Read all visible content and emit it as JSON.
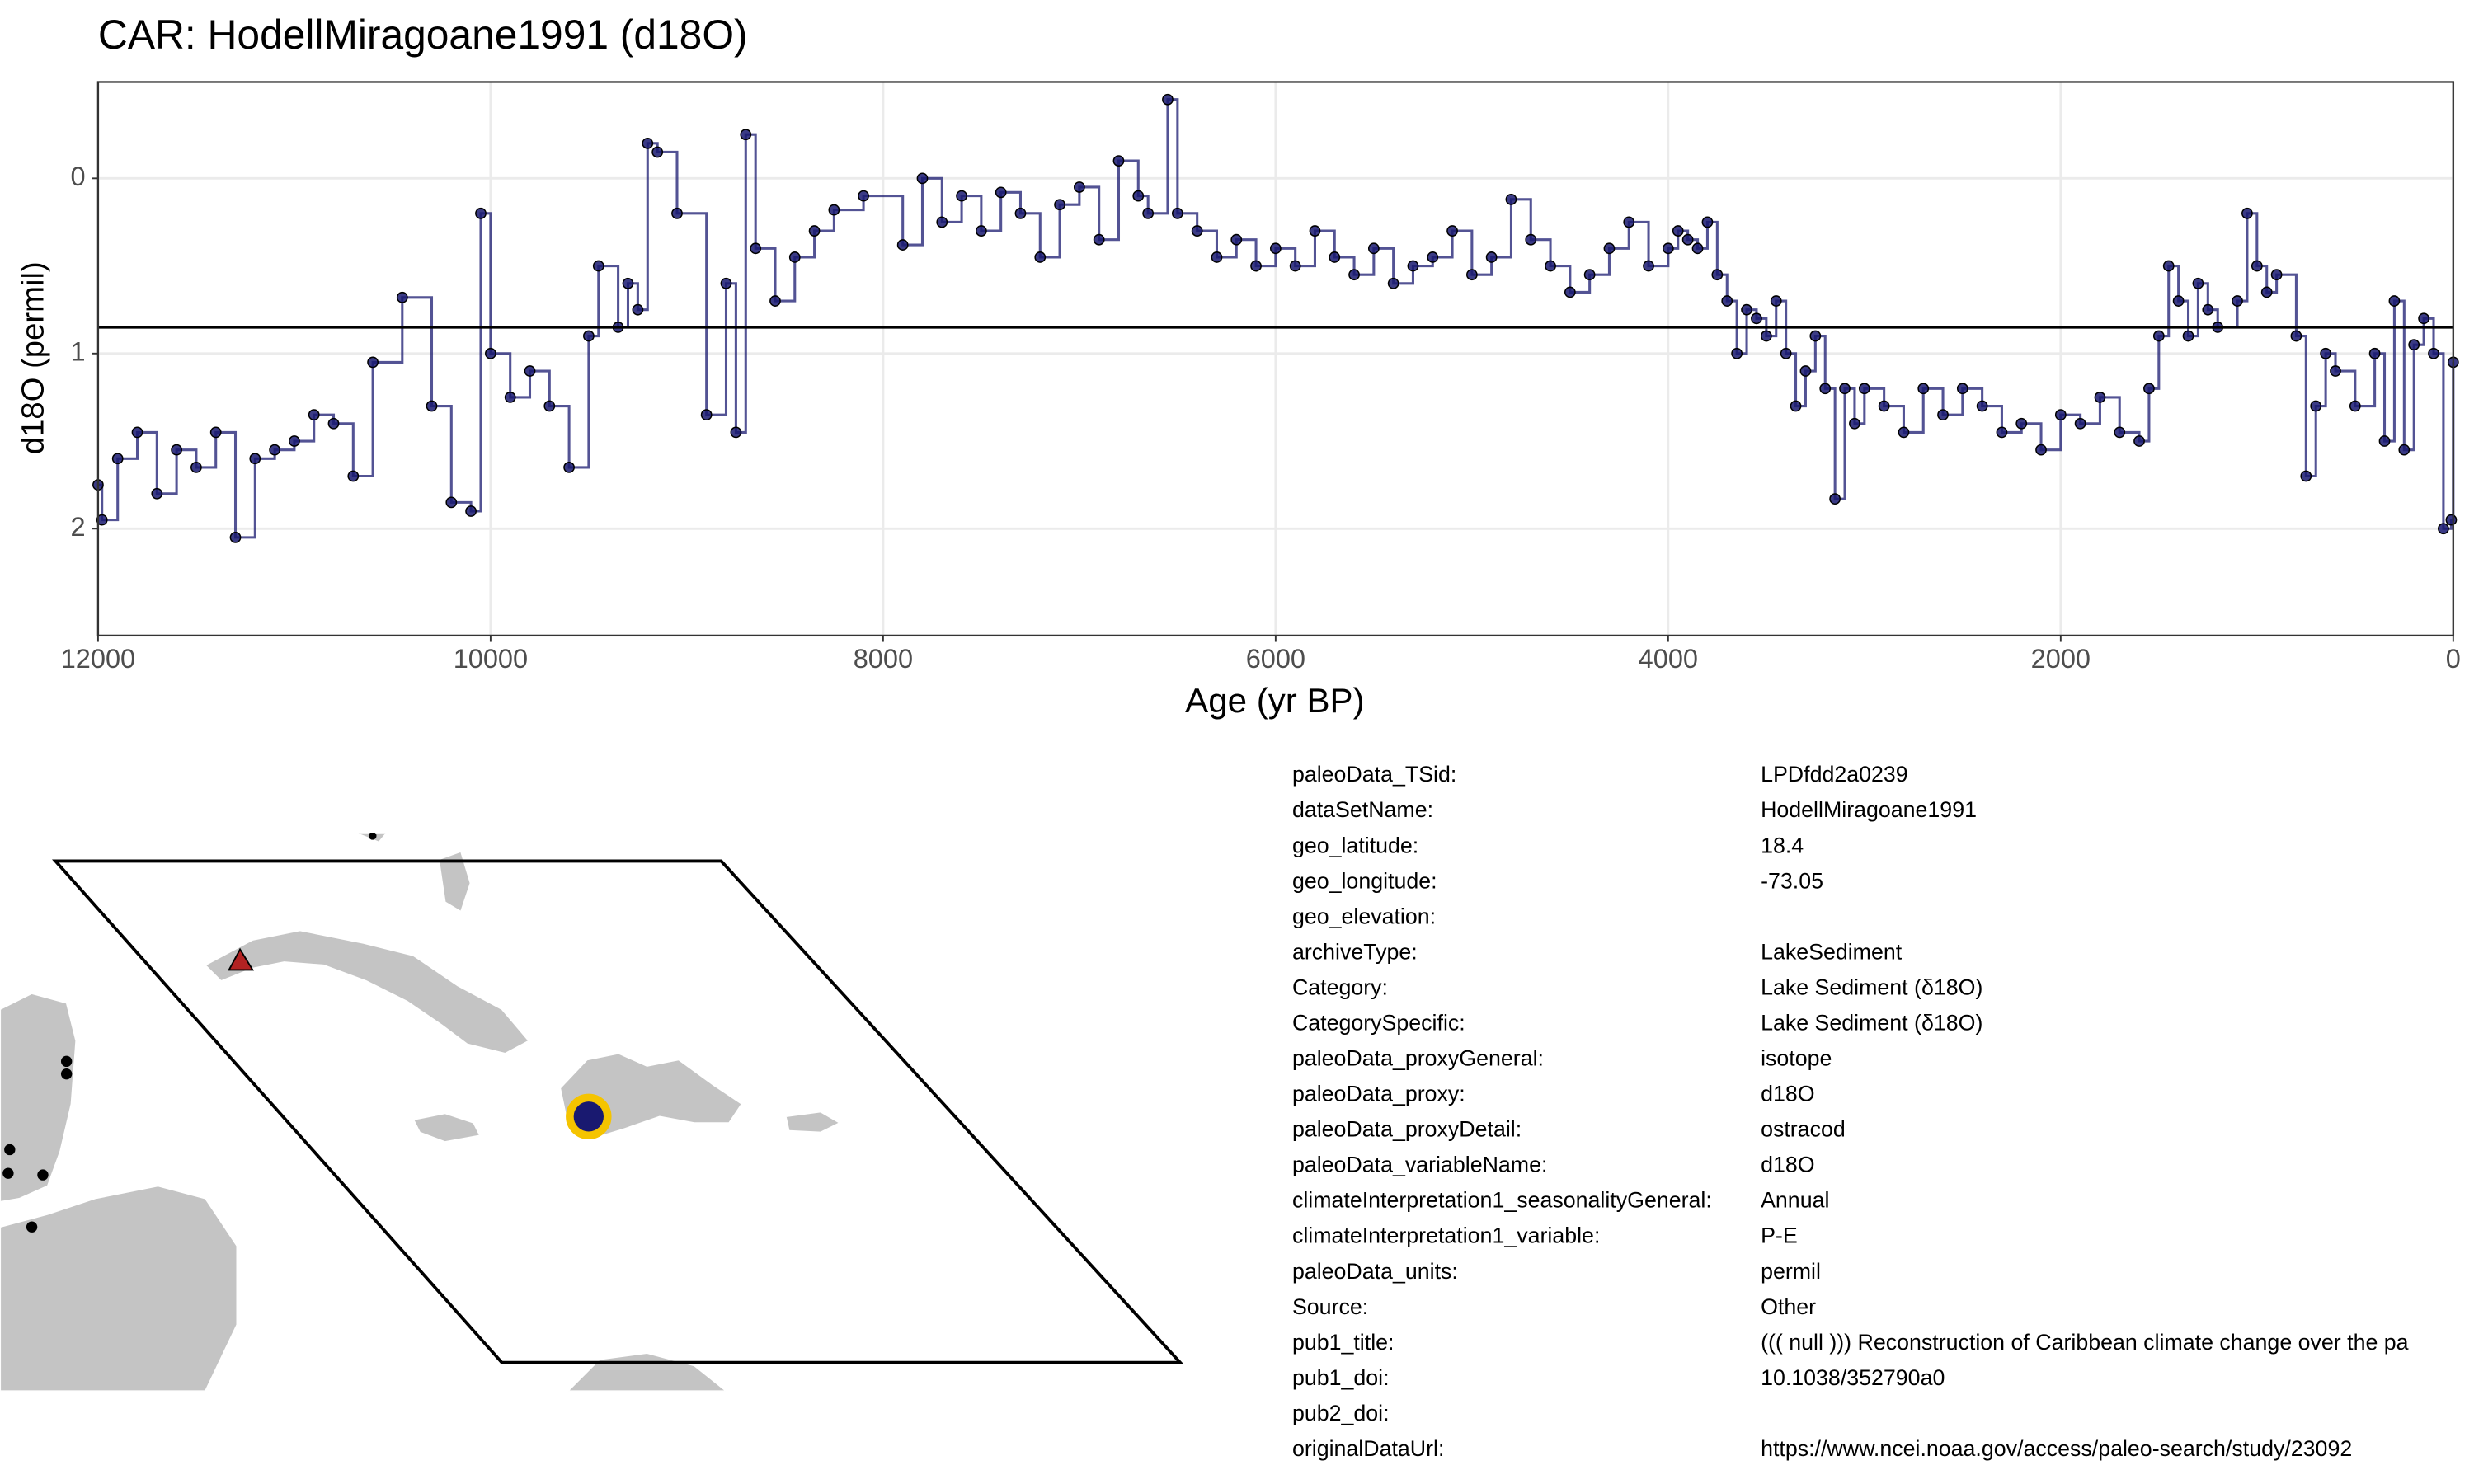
{
  "chart_data": {
    "type": "step",
    "title": "CAR: HodellMiragoane1991 (d18O)",
    "x_label": "Age (yr BP)",
    "y_label": "d18O (permil)",
    "xlim": [
      12000,
      0
    ],
    "xticks": [
      12000,
      10000,
      8000,
      6000,
      4000,
      2000,
      0
    ],
    "ylim": [
      2.61,
      -0.55
    ],
    "yticks": [
      0,
      1,
      2
    ],
    "grid": true,
    "reference_line": 0.85,
    "series": [
      {
        "color": "#191970",
        "x": [
          12000,
          11980,
          11900,
          11800,
          11700,
          11600,
          11500,
          11400,
          11300,
          11200,
          11100,
          11000,
          10900,
          10800,
          10700,
          10600,
          10450,
          10300,
          10200,
          10100,
          10050,
          10000,
          9900,
          9800,
          9700,
          9600,
          9500,
          9450,
          9350,
          9300,
          9250,
          9200,
          9150,
          9050,
          8900,
          8800,
          8750,
          8700,
          8650,
          8550,
          8450,
          8350,
          8250,
          8100,
          7900,
          7800,
          7700,
          7600,
          7500,
          7400,
          7300,
          7200,
          7100,
          7000,
          6900,
          6800,
          6700,
          6650,
          6550,
          6500,
          6400,
          6300,
          6200,
          6100,
          6000,
          5900,
          5800,
          5700,
          5600,
          5500,
          5400,
          5300,
          5200,
          5100,
          5000,
          4900,
          4800,
          4700,
          4600,
          4500,
          4400,
          4300,
          4200,
          4100,
          4000,
          3950,
          3900,
          3850,
          3800,
          3750,
          3700,
          3650,
          3600,
          3550,
          3500,
          3450,
          3400,
          3350,
          3300,
          3250,
          3200,
          3150,
          3100,
          3050,
          3000,
          2900,
          2800,
          2700,
          2600,
          2500,
          2400,
          2300,
          2200,
          2100,
          2000,
          1900,
          1800,
          1700,
          1600,
          1550,
          1500,
          1450,
          1400,
          1350,
          1300,
          1250,
          1200,
          1100,
          1050,
          1000,
          950,
          900,
          800,
          750,
          700,
          650,
          600,
          500,
          400,
          350,
          300,
          250,
          200,
          150,
          100,
          50,
          10,
          0
        ],
        "values": [
          1.75,
          1.95,
          1.6,
          1.45,
          1.8,
          1.55,
          1.65,
          1.45,
          2.05,
          1.6,
          1.55,
          1.5,
          1.35,
          1.4,
          1.7,
          1.05,
          0.68,
          1.3,
          1.85,
          1.9,
          0.2,
          1.0,
          1.25,
          1.1,
          1.3,
          1.65,
          0.9,
          0.5,
          0.85,
          0.6,
          0.75,
          -0.2,
          -0.15,
          0.2,
          1.35,
          0.6,
          1.45,
          -0.25,
          0.4,
          0.7,
          0.45,
          0.3,
          0.18,
          0.1,
          0.38,
          0.0,
          0.25,
          0.1,
          0.3,
          0.08,
          0.2,
          0.45,
          0.15,
          0.05,
          0.35,
          -0.1,
          0.1,
          0.2,
          -0.45,
          0.2,
          0.3,
          0.45,
          0.35,
          0.5,
          0.4,
          0.5,
          0.3,
          0.45,
          0.55,
          0.4,
          0.6,
          0.5,
          0.45,
          0.3,
          0.55,
          0.45,
          0.12,
          0.35,
          0.5,
          0.65,
          0.55,
          0.4,
          0.25,
          0.5,
          0.4,
          0.3,
          0.35,
          0.4,
          0.25,
          0.55,
          0.7,
          1.0,
          0.75,
          0.8,
          0.9,
          0.7,
          1.0,
          1.3,
          1.1,
          0.9,
          1.2,
          1.83,
          1.2,
          1.4,
          1.2,
          1.3,
          1.45,
          1.2,
          1.35,
          1.2,
          1.3,
          1.45,
          1.4,
          1.55,
          1.35,
          1.4,
          1.25,
          1.45,
          1.5,
          1.2,
          0.9,
          0.5,
          0.7,
          0.9,
          0.6,
          0.75,
          0.85,
          0.7,
          0.2,
          0.5,
          0.65,
          0.55,
          0.9,
          1.7,
          1.3,
          1.0,
          1.1,
          1.3,
          1.0,
          1.5,
          0.7,
          1.55,
          0.95,
          0.8,
          1.0,
          2.0,
          1.95,
          1.05
        ]
      }
    ]
  },
  "table": {
    "rows": [
      [
        "paleoData_TSid:",
        "LPDfdd2a0239"
      ],
      [
        "dataSetName:",
        "HodellMiragoane1991"
      ],
      [
        "geo_latitude:",
        "18.4"
      ],
      [
        "geo_longitude:",
        "-73.05"
      ],
      [
        "geo_elevation:",
        null
      ],
      [
        "archiveType:",
        "LakeSediment"
      ],
      [
        "Category:",
        "Lake Sediment (δ18O)"
      ],
      [
        "CategorySpecific:",
        "Lake Sediment (δ18O)"
      ],
      [
        "paleoData_proxyGeneral:",
        "isotope"
      ],
      [
        "paleoData_proxy:",
        "d18O"
      ],
      [
        "paleoData_proxyDetail:",
        "ostracod"
      ],
      [
        "paleoData_variableName:",
        "d18O"
      ],
      [
        "climateInterpretation1_seasonalityGeneral:",
        "Annual"
      ],
      [
        "climateInterpretation1_variable:",
        "P-E"
      ],
      [
        "paleoData_units:",
        "permil"
      ],
      [
        "Source:",
        "Other"
      ],
      [
        "pub1_title:",
        "((( null ))) Reconstruction of Caribbean climate change over the pa"
      ],
      [
        "pub1_doi:",
        "10.1038/352790a0"
      ],
      [
        "pub2_doi:",
        null
      ],
      [
        "originalDataUrl:",
        "https://www.ncei.noaa.gov/access/paleo-search/study/23092"
      ]
    ]
  }
}
